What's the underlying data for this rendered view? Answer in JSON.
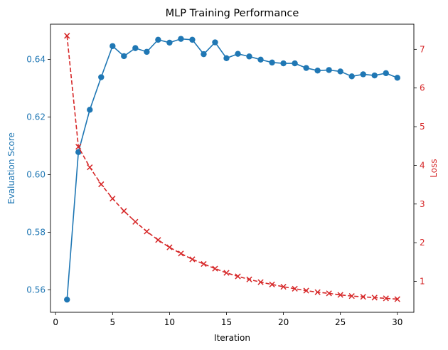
{
  "chart_data": {
    "type": "line",
    "title": "MLP Training Performance",
    "xlabel": "Iteration",
    "x": [
      1,
      2,
      3,
      4,
      5,
      6,
      7,
      8,
      9,
      10,
      11,
      12,
      13,
      14,
      15,
      16,
      17,
      18,
      19,
      20,
      21,
      22,
      23,
      24,
      25,
      26,
      27,
      28,
      29,
      30
    ],
    "x_ticks": [
      0,
      5,
      10,
      15,
      20,
      25,
      30
    ],
    "xlim": [
      -0.45,
      31.45
    ],
    "y_left": {
      "label": "Evaluation Score",
      "color": "#1f77b4",
      "ticks": [
        0.56,
        0.58,
        0.6,
        0.62,
        0.64
      ],
      "tick_labels": [
        "0.56",
        "0.58",
        "0.60",
        "0.62",
        "0.64"
      ],
      "ylim": [
        0.5522,
        0.6522
      ]
    },
    "y_right": {
      "label": "Loss",
      "color": "#d62728",
      "ticks": [
        1,
        2,
        3,
        4,
        5,
        6,
        7
      ],
      "tick_labels": [
        "1",
        "2",
        "3",
        "4",
        "5",
        "6",
        "7"
      ],
      "ylim": [
        0.2,
        7.65
      ]
    },
    "series": [
      {
        "axis": "left",
        "color": "#1f77b4",
        "marker": "circle",
        "line_style": "solid",
        "values": [
          0.5566,
          0.6078,
          0.6225,
          0.6338,
          0.6446,
          0.6411,
          0.6439,
          0.6426,
          0.6468,
          0.6458,
          0.6471,
          0.6468,
          0.6418,
          0.6459,
          0.6404,
          0.6419,
          0.641,
          0.6399,
          0.6389,
          0.6386,
          0.6386,
          0.637,
          0.6361,
          0.6363,
          0.6358,
          0.6341,
          0.6348,
          0.6344,
          0.6352,
          0.6336
        ]
      },
      {
        "axis": "right",
        "color": "#d62728",
        "marker": "x",
        "line_style": "dashed",
        "values": [
          7.35,
          4.48,
          3.95,
          3.51,
          3.14,
          2.82,
          2.54,
          2.29,
          2.07,
          1.88,
          1.72,
          1.57,
          1.45,
          1.33,
          1.22,
          1.13,
          1.05,
          0.98,
          0.92,
          0.86,
          0.81,
          0.76,
          0.72,
          0.69,
          0.65,
          0.62,
          0.6,
          0.58,
          0.56,
          0.54
        ]
      }
    ]
  }
}
